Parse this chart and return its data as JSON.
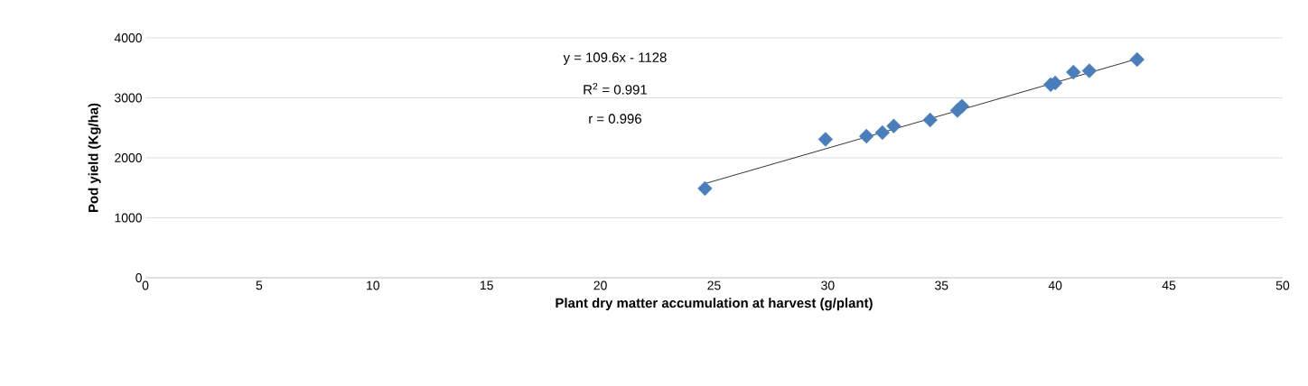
{
  "chart_data": {
    "type": "scatter",
    "xlabel": "Plant dry matter accumulation at harvest (g/plant)",
    "ylabel": "Pod yield (Kg/ha)",
    "annotations": [
      "y = 109.6x - 1128",
      "R$^{2}$ = 0.991",
      "r = 0.996"
    ],
    "xlim": [
      0,
      50
    ],
    "xticks": [
      0,
      5,
      10,
      15,
      20,
      25,
      30,
      35,
      40,
      45,
      50
    ],
    "ylim": [
      0,
      4000
    ],
    "yticks": [
      0,
      1000,
      2000,
      3000,
      4000
    ],
    "grid": "y",
    "marker": "diamond",
    "series": [
      {
        "color": "#4a7ebb",
        "x": [
          24.6,
          29.9,
          31.7,
          32.4,
          32.9,
          34.5,
          35.7,
          35.9,
          39.8,
          40.0,
          40.8,
          41.5,
          43.6
        ],
        "values": [
          1490,
          2310,
          2360,
          2420,
          2530,
          2630,
          2790,
          2860,
          3220,
          3250,
          3430,
          3450,
          3640
        ]
      },
      {
        "type": "line",
        "color": "#000000",
        "marker": "none",
        "x": [
          24.6,
          43.6
        ],
        "values": [
          1570,
          3650
        ]
      }
    ]
  }
}
